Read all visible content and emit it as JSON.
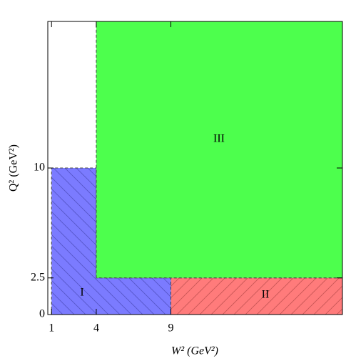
{
  "chart_data": {
    "type": "region",
    "xlabel": "W² (GeV²)",
    "ylabel": "Q² (GeV²)",
    "xlim": [
      0.75,
      20.5
    ],
    "ylim": [
      0,
      20
    ],
    "xticks": [
      1,
      4,
      9
    ],
    "yticks": [
      0,
      2.5,
      10
    ],
    "regions": [
      {
        "name": "I",
        "color": "#7b7bff",
        "hatch": "backslash",
        "x": [
          1,
          1,
          4,
          4,
          9,
          9
        ],
        "y": [
          0,
          10,
          10,
          2.5,
          2.5,
          0
        ]
      },
      {
        "name": "II",
        "color": "#ff7b7b",
        "hatch": "slash",
        "x": [
          9,
          9,
          20.5,
          20.5
        ],
        "y": [
          0,
          2.5,
          2.5,
          0
        ]
      },
      {
        "name": "III",
        "color": "#4dff4d",
        "x": [
          4,
          4,
          20.5,
          20.5
        ],
        "y": [
          2.5,
          20,
          20,
          2.5
        ]
      }
    ]
  }
}
